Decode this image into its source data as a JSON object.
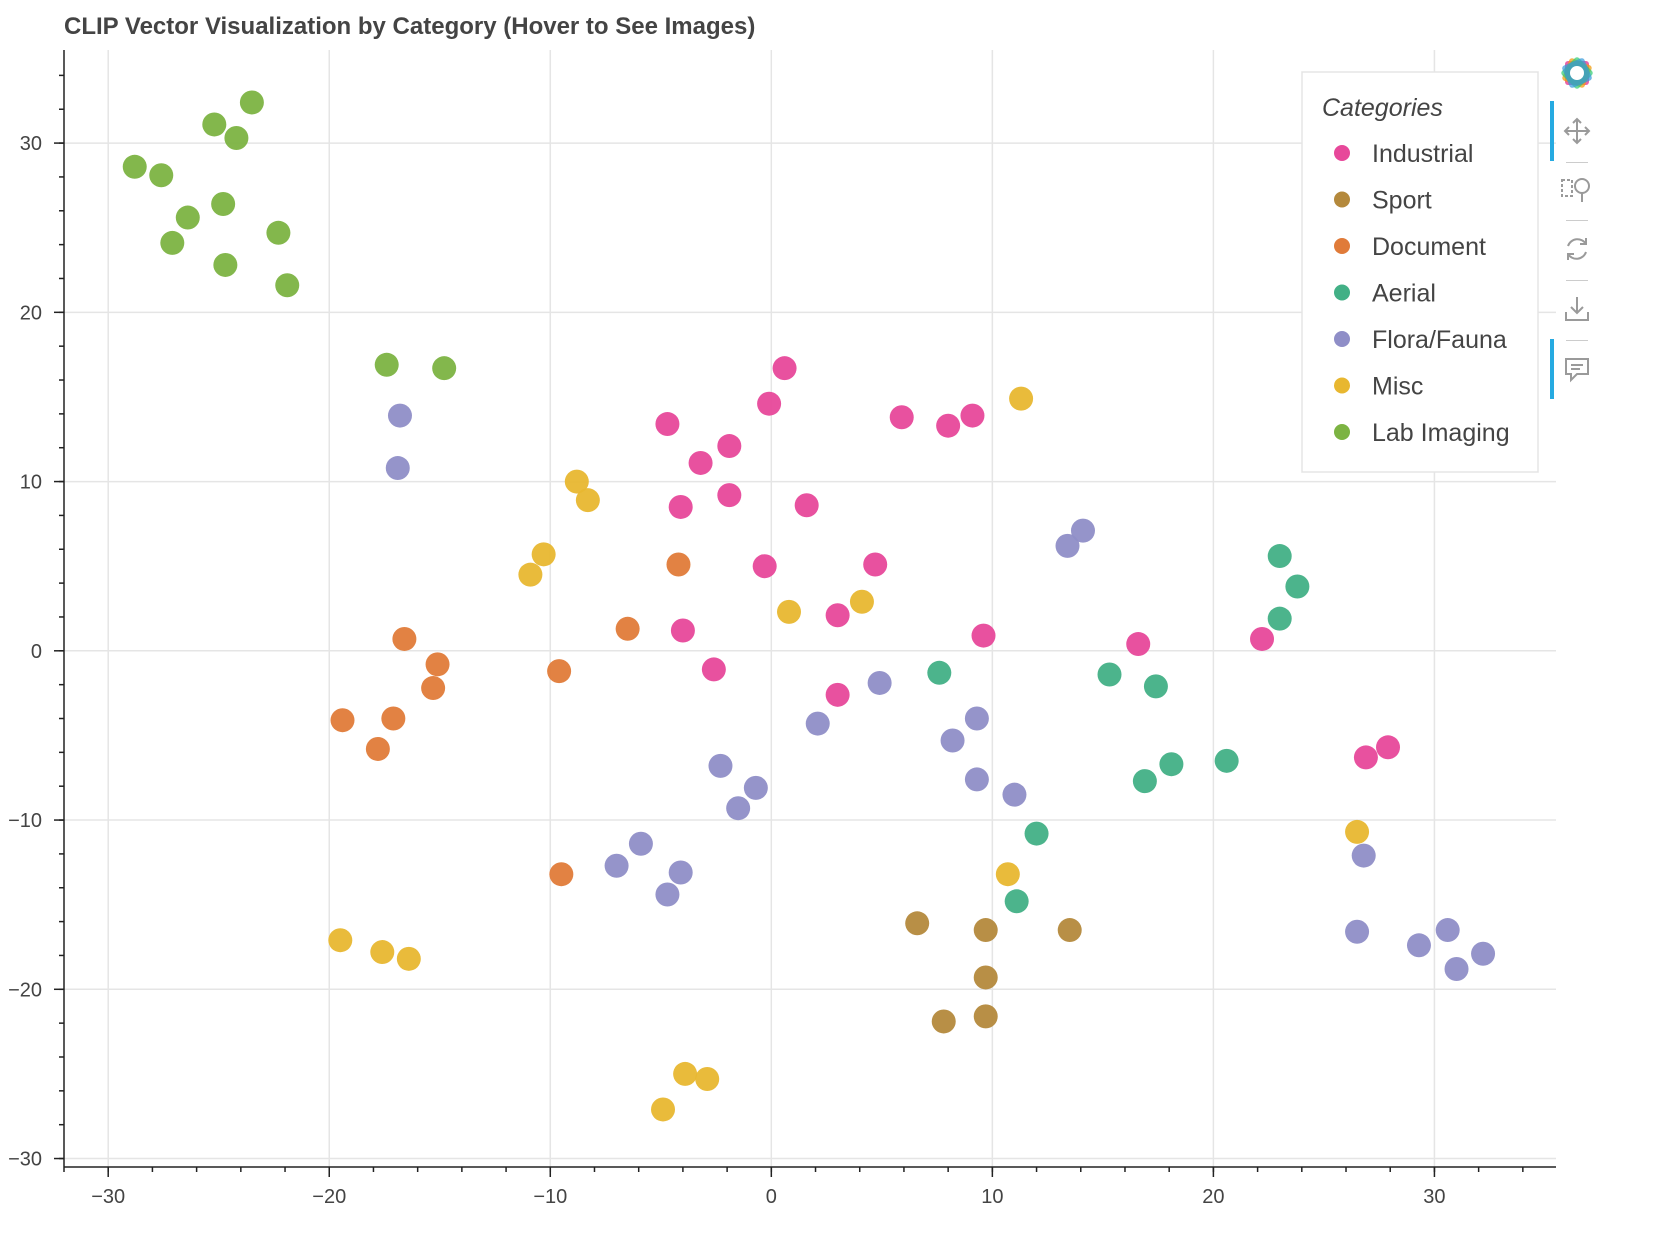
{
  "chart_data": {
    "type": "scatter",
    "title": "CLIP Vector Visualization by Category (Hover to See Images)",
    "xlabel": "",
    "ylabel": "",
    "xlim": [
      -32,
      35.5
    ],
    "ylim": [
      -30.5,
      35.5
    ],
    "grid": true,
    "x_ticks": [
      -30,
      -20,
      -10,
      0,
      10,
      20,
      30
    ],
    "y_ticks": [
      -30,
      -20,
      -10,
      0,
      10,
      20,
      30
    ],
    "x_tick_labels": [
      "−30",
      "−20",
      "−10",
      "0",
      "10",
      "20",
      "30"
    ],
    "y_tick_labels": [
      "−30",
      "−20",
      "−10",
      "0",
      "10",
      "20",
      "30"
    ],
    "legend": {
      "title": "Categories",
      "placement": "top-right"
    },
    "series": [
      {
        "name": "Industrial",
        "color": "#e7489a",
        "points": [
          [
            0.6,
            16.7
          ],
          [
            -0.1,
            14.6
          ],
          [
            5.9,
            13.8
          ],
          [
            8,
            13.3
          ],
          [
            9.1,
            13.9
          ],
          [
            -4.7,
            13.4
          ],
          [
            -3.2,
            11.1
          ],
          [
            -1.9,
            12.1
          ],
          [
            -4.1,
            8.5
          ],
          [
            -1.9,
            9.2
          ],
          [
            1.6,
            8.6
          ],
          [
            -0.3,
            5.0
          ],
          [
            4.7,
            5.1
          ],
          [
            3.0,
            2.1
          ],
          [
            -4.0,
            1.2
          ],
          [
            -2.6,
            -1.1
          ],
          [
            3.0,
            -2.6
          ],
          [
            9.6,
            0.9
          ],
          [
            16.6,
            0.4
          ],
          [
            22.2,
            0.7
          ],
          [
            27.9,
            -5.7
          ],
          [
            26.9,
            -6.3
          ]
        ]
      },
      {
        "name": "Sport",
        "color": "#b4893c",
        "points": [
          [
            6.6,
            -16.1
          ],
          [
            9.7,
            -16.5
          ],
          [
            13.5,
            -16.5
          ],
          [
            9.7,
            -19.3
          ],
          [
            7.8,
            -21.9
          ],
          [
            9.7,
            -21.6
          ]
        ]
      },
      {
        "name": "Document",
        "color": "#e07b39",
        "points": [
          [
            -4.2,
            5.1
          ],
          [
            -6.5,
            1.3
          ],
          [
            -16.6,
            0.7
          ],
          [
            -15.1,
            -0.8
          ],
          [
            -15.3,
            -2.2
          ],
          [
            -9.6,
            -1.2
          ],
          [
            -19.4,
            -4.1
          ],
          [
            -17.1,
            -4.0
          ],
          [
            -17.8,
            -5.8
          ],
          [
            -9.5,
            -13.2
          ]
        ]
      },
      {
        "name": "Aerial",
        "color": "#42b086",
        "points": [
          [
            23.0,
            5.6
          ],
          [
            23.8,
            3.8
          ],
          [
            23.0,
            1.9
          ],
          [
            15.3,
            -1.4
          ],
          [
            17.4,
            -2.1
          ],
          [
            7.6,
            -1.3
          ],
          [
            18.1,
            -6.7
          ],
          [
            16.9,
            -7.7
          ],
          [
            20.6,
            -6.5
          ],
          [
            12.0,
            -10.8
          ],
          [
            11.1,
            -14.8
          ]
        ]
      },
      {
        "name": "Flora/Fauna",
        "color": "#8f8ec7",
        "points": [
          [
            -16.8,
            13.9
          ],
          [
            -16.9,
            10.8
          ],
          [
            13.4,
            6.2
          ],
          [
            14.1,
            7.1
          ],
          [
            4.9,
            -1.9
          ],
          [
            2.1,
            -4.3
          ],
          [
            9.3,
            -4.0
          ],
          [
            8.2,
            -5.3
          ],
          [
            -2.3,
            -6.8
          ],
          [
            -0.7,
            -8.1
          ],
          [
            -1.5,
            -9.3
          ],
          [
            9.3,
            -7.6
          ],
          [
            11.0,
            -8.5
          ],
          [
            -5.9,
            -11.4
          ],
          [
            -7.0,
            -12.7
          ],
          [
            -4.1,
            -13.1
          ],
          [
            -4.7,
            -14.4
          ],
          [
            26.8,
            -12.1
          ],
          [
            26.5,
            -16.6
          ],
          [
            29.3,
            -17.4
          ],
          [
            30.6,
            -16.5
          ],
          [
            31.0,
            -18.8
          ],
          [
            32.2,
            -17.9
          ]
        ]
      },
      {
        "name": "Misc",
        "color": "#e8b730",
        "points": [
          [
            11.3,
            14.9
          ],
          [
            -8.8,
            10.0
          ],
          [
            -8.3,
            8.9
          ],
          [
            -10.3,
            5.7
          ],
          [
            -10.9,
            4.5
          ],
          [
            0.8,
            2.3
          ],
          [
            4.1,
            2.9
          ],
          [
            26.5,
            -10.7
          ],
          [
            10.7,
            -13.2
          ],
          [
            -19.5,
            -17.1
          ],
          [
            -17.6,
            -17.8
          ],
          [
            -16.4,
            -18.2
          ],
          [
            -3.9,
            -25.0
          ],
          [
            -2.9,
            -25.3
          ],
          [
            -4.9,
            -27.1
          ]
        ]
      },
      {
        "name": "Lab Imaging",
        "color": "#7cb342",
        "points": [
          [
            -23.5,
            32.4
          ],
          [
            -25.2,
            31.1
          ],
          [
            -24.2,
            30.3
          ],
          [
            -28.8,
            28.6
          ],
          [
            -27.6,
            28.1
          ],
          [
            -24.8,
            26.4
          ],
          [
            -26.4,
            25.6
          ],
          [
            -22.3,
            24.7
          ],
          [
            -27.1,
            24.1
          ],
          [
            -24.7,
            22.8
          ],
          [
            -21.9,
            21.6
          ],
          [
            -17.4,
            16.9
          ],
          [
            -14.8,
            16.7
          ]
        ]
      }
    ]
  },
  "toolbar": {
    "logo": "bokeh-logo-icon",
    "tools": [
      "pan-icon",
      "box-zoom-icon",
      "reset-icon",
      "save-icon",
      "hover-icon"
    ]
  }
}
